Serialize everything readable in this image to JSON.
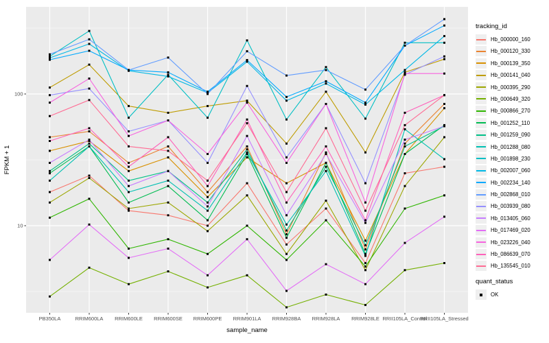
{
  "figure": {
    "background": "#FFFFFF",
    "panel_background": "#EBEBEB",
    "gridline_major_color": "#FFFFFF",
    "gridline_minor_color": "#F7F7F7",
    "axis_text_color": "#4D4D4D",
    "axis_title_color": "#000000",
    "tick_mark_color": "#333333",
    "marker_color": "#000000",
    "legend_key_background": "#EFEFEF"
  },
  "axes": {
    "x_title": "sample_name",
    "y_title": "FPKM + 1",
    "y_tick_labels": [
      "100",
      "10"
    ],
    "y_tick_values": [
      100,
      10
    ]
  },
  "legend": {
    "tracking_id_title": "tracking_id",
    "quant_status_title": "quant_status",
    "quant_status_entries": [
      {
        "label": "OK",
        "marker": "black-square"
      }
    ]
  },
  "chart_data": {
    "type": "line",
    "title": "",
    "xlabel": "sample_name",
    "ylabel": "FPKM + 1",
    "y_scale": "log10",
    "ylim": [
      2.2,
      460
    ],
    "y_major_gridlines": [
      100,
      10
    ],
    "y_minor_gridlines": [
      316.23,
      31.623,
      3.1623
    ],
    "grid": true,
    "legend_position": "right",
    "marker": "black-square",
    "marker_legend": {
      "title": "quant_status",
      "label": "OK"
    },
    "categories": [
      "PB350LA",
      "RRIM600LA",
      "RRIM600LE",
      "RRIM600SE",
      "RRIM600PE",
      "RRIM901LA",
      "RRIM928BA",
      "RRIM928LA",
      "RRIM928LE",
      "RRII105LA_Control",
      "RRII105LA_Stressed"
    ],
    "series": [
      {
        "name": "Hb_000000_160",
        "color": "#F8766D",
        "values": [
          18,
          24,
          13,
          12,
          10,
          21,
          7.2,
          13.5,
          5.2,
          25,
          28
        ]
      },
      {
        "name": "Hb_000120_330",
        "color": "#EA8331",
        "values": [
          47,
          52,
          30,
          40,
          18,
          40,
          8.6,
          36,
          6.6,
          42,
          84
        ]
      },
      {
        "name": "Hb_000139_350",
        "color": "#D89000",
        "values": [
          37,
          44,
          26,
          33,
          16.5,
          33,
          21,
          30,
          7.7,
          35,
          78
        ]
      },
      {
        "name": "Hb_000141_040",
        "color": "#BE9C00",
        "values": [
          112,
          167,
          81,
          72,
          81,
          89,
          42,
          104,
          36,
          146,
          184
        ]
      },
      {
        "name": "Hb_000395_290",
        "color": "#9CA700",
        "values": [
          15,
          23,
          13.5,
          15,
          9.1,
          17,
          6.1,
          15.5,
          4.6,
          20,
          47
        ]
      },
      {
        "name": "Hb_000649_320",
        "color": "#74B000",
        "values": [
          2.9,
          4.8,
          3.6,
          4.5,
          3.4,
          4.2,
          2.4,
          3.0,
          2.5,
          4.6,
          5.2
        ]
      },
      {
        "name": "Hb_000866_270",
        "color": "#2FB600",
        "values": [
          11.5,
          16,
          6.7,
          7.9,
          6.1,
          10,
          5.5,
          11,
          4.9,
          13.5,
          17
        ]
      },
      {
        "name": "Hb_001252_110",
        "color": "#00BC51",
        "values": [
          25,
          40,
          15,
          20,
          11,
          35,
          8.1,
          30,
          6.1,
          35,
          58
        ]
      },
      {
        "name": "Hb_001259_090",
        "color": "#00C087",
        "values": [
          26,
          42,
          22,
          26,
          15,
          38,
          9.2,
          28,
          7.1,
          40,
          57
        ]
      },
      {
        "name": "Hb_001288_080",
        "color": "#00C0B2",
        "values": [
          22,
          40,
          18,
          22,
          13,
          36,
          10.2,
          26,
          5.9,
          54,
          32
        ]
      },
      {
        "name": "Hb_001898_230",
        "color": "#00BFC4",
        "values": [
          193,
          301,
          66,
          140,
          66,
          255,
          64,
          160,
          65,
          245,
          245
        ]
      },
      {
        "name": "Hb_002007_060",
        "color": "#00B8E5",
        "values": [
          188,
          240,
          150,
          136,
          102,
          176,
          89,
          120,
          83,
          152,
          275
        ]
      },
      {
        "name": "Hb_002234_140",
        "color": "#00A9FF",
        "values": [
          182,
          213,
          152,
          146,
          104,
          181,
          95,
          125,
          86,
          233,
          331
        ]
      },
      {
        "name": "Hb_002868_010",
        "color": "#619CFF",
        "values": [
          200,
          260,
          152,
          189,
          100,
          211,
          138,
          152,
          108,
          233,
          370
        ]
      },
      {
        "name": "Hb_003939_080",
        "color": "#9590FF",
        "values": [
          98,
          110,
          52,
          63,
          30,
          115,
          33,
          84,
          21,
          140,
          193
        ]
      },
      {
        "name": "Hb_013405_060",
        "color": "#C77CFF",
        "values": [
          30,
          45,
          20,
          26,
          14,
          48,
          12,
          35,
          10.5,
          45,
          57
        ]
      },
      {
        "name": "Hb_017469_020",
        "color": "#E36EF6",
        "values": [
          5.5,
          10.2,
          5.7,
          6.7,
          4.2,
          7.9,
          3.2,
          5.1,
          3.6,
          7.4,
          11.7
        ]
      },
      {
        "name": "Hb_023226_040",
        "color": "#F763DF",
        "values": [
          86,
          131,
          48,
          63,
          35,
          86,
          30,
          84,
          15,
          143,
          143
        ]
      },
      {
        "name": "Hb_086639_070",
        "color": "#FF61BA",
        "values": [
          44,
          55,
          28,
          47,
          20,
          64,
          15,
          40,
          11,
          72,
          98
        ]
      },
      {
        "name": "Hb_135545_010",
        "color": "#FF6B94",
        "values": [
          68,
          90,
          40,
          37,
          22,
          60,
          18,
          55,
          13,
          58,
          98
        ]
      }
    ]
  }
}
